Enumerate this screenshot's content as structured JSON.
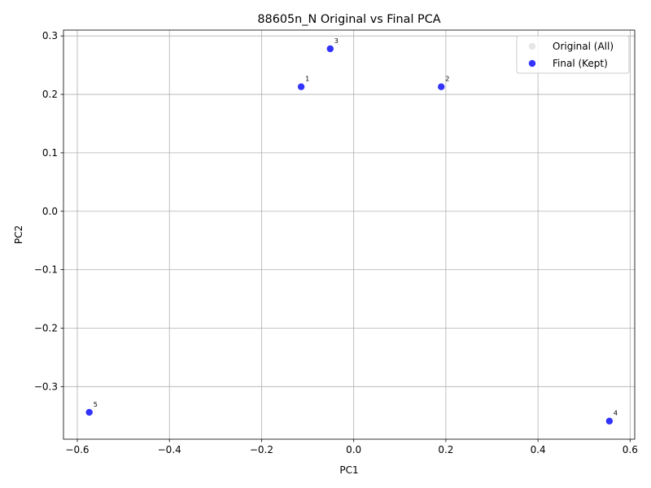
{
  "chart_data": {
    "type": "scatter",
    "title": "88605n_N Original vs Final PCA",
    "xlabel": "PC1",
    "ylabel": "PC2",
    "xlim": [
      -0.63,
      0.61
    ],
    "ylim": [
      -0.39,
      0.31
    ],
    "xticks": [
      -0.6,
      -0.4,
      -0.2,
      0.0,
      0.2,
      0.4,
      0.6
    ],
    "xtick_labels": [
      "−0.6",
      "−0.4",
      "−0.2",
      "0.0",
      "0.2",
      "0.4",
      "0.6"
    ],
    "yticks": [
      -0.3,
      -0.2,
      -0.1,
      0.0,
      0.1,
      0.2,
      0.3
    ],
    "ytick_labels": [
      "−0.3",
      "−0.2",
      "−0.1",
      "0.0",
      "0.1",
      "0.2",
      "0.3"
    ],
    "grid": true,
    "legend_position": "top-right",
    "series": [
      {
        "name": "Original (All)",
        "color": "#d3d3d3",
        "points": []
      },
      {
        "name": "Final (Kept)",
        "color": "#0000ff",
        "points": [
          {
            "label": "1",
            "x": -0.114,
            "y": 0.213
          },
          {
            "label": "2",
            "x": 0.19,
            "y": 0.213
          },
          {
            "label": "3",
            "x": -0.051,
            "y": 0.278
          },
          {
            "label": "4",
            "x": 0.555,
            "y": -0.359
          },
          {
            "label": "5",
            "x": -0.574,
            "y": -0.344
          }
        ]
      }
    ]
  }
}
